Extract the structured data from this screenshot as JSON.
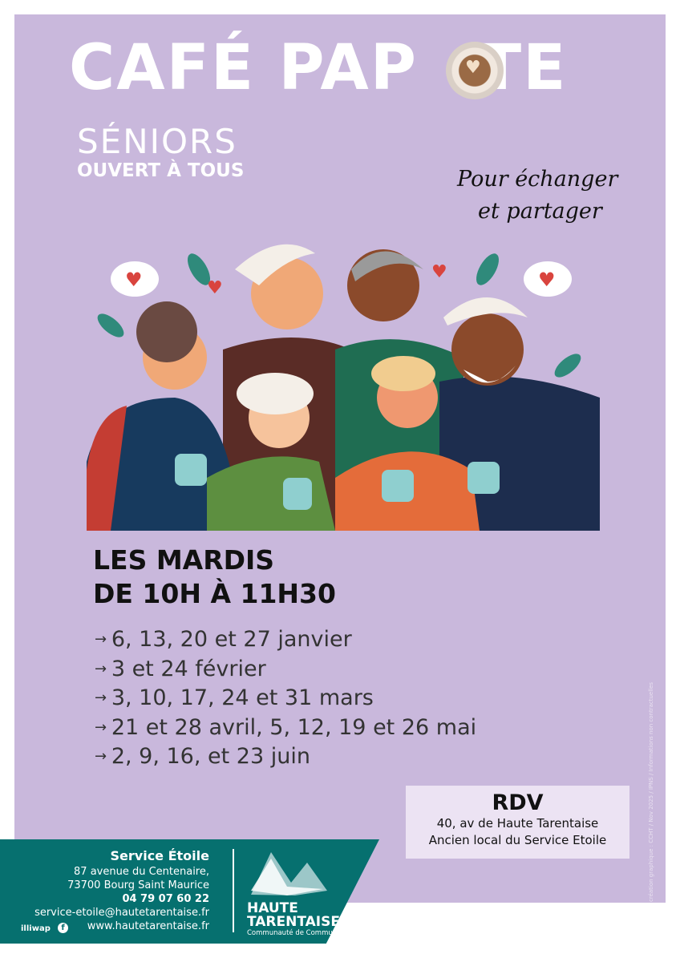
{
  "header": {
    "title": "CAFÉ PAP",
    "title_tail": "TE",
    "audience": "SÉNIORS",
    "open": "OUVERT À TOUS",
    "tagline": [
      "Pour échanger",
      "et partager"
    ]
  },
  "schedule": {
    "day": "LES MARDIS",
    "time": "DE 10H À 11H30",
    "dates": [
      "6, 13, 20 et 27 janvier",
      "3 et 24 février",
      "3, 10, 17, 24 et 31 mars",
      "21 et 28 avril, 5, 12, 19 et 26 mai",
      "2, 9, 16, et 23 juin"
    ]
  },
  "rdv": {
    "title": "RDV",
    "lines": [
      "40, av de Haute Tarentaise",
      "Ancien local du Service Etoile"
    ]
  },
  "credit": "création graphique : CCHT / Nov 2025 / IPNS / Informations non contractuelles",
  "footer": {
    "service": "Service Étoile",
    "address1": "87 avenue du Centenaire,",
    "address2": "73700 Bourg Saint Maurice",
    "phone": "04 79 07 60 22",
    "email": "service-etoile@hautetarentaise.fr",
    "web": "www.hautetarentaise.fr",
    "illiwap": "illiwap",
    "facebook": "f",
    "logo_name1": "HAUTE",
    "logo_name2": "TARENTAISE",
    "logo_sub": "Communauté de Communes"
  },
  "colors": {
    "panel": "#c9b8dc",
    "footer": "#06706f",
    "rdv_box": "#ece3f3"
  }
}
